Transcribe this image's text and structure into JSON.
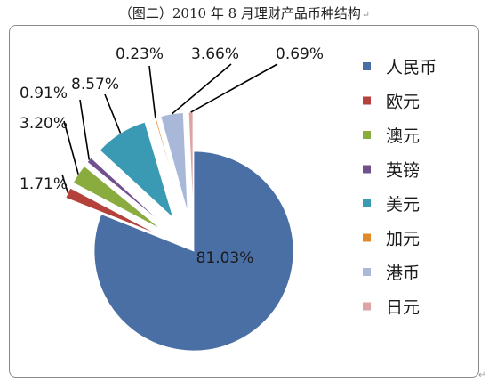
{
  "title": "（图二）2010 年 8 月理财产品币种结构",
  "title_mark": "↵",
  "corner_mark": "↵",
  "colors": {
    "人民币": "#4a6fa5",
    "欧元": "#b5413b",
    "澳元": "#8aab3e",
    "英镑": "#72508f",
    "美元": "#3b9ab3",
    "加元": "#e08a2c",
    "港币": "#a9b8d8",
    "日元": "#dca5a3"
  },
  "chart_data": {
    "type": "pie",
    "title": "（图二）2010 年 8 月理财产品币种结构",
    "exploded": true,
    "legend_position": "right",
    "slices": [
      {
        "name": "人民币",
        "value": 81.03,
        "label": "81.03%"
      },
      {
        "name": "欧元",
        "value": 1.71,
        "label": "1.71%"
      },
      {
        "name": "澳元",
        "value": 3.2,
        "label": "3.20%"
      },
      {
        "name": "英镑",
        "value": 0.91,
        "label": "0.91%"
      },
      {
        "name": "美元",
        "value": 8.57,
        "label": "8.57%"
      },
      {
        "name": "加元",
        "value": 0.23,
        "label": "0.23%"
      },
      {
        "name": "港币",
        "value": 3.66,
        "label": "3.66%"
      },
      {
        "name": "日元",
        "value": 0.69,
        "label": "0.69%"
      }
    ],
    "legend": [
      "人民币",
      "欧元",
      "澳元",
      "英镑",
      "美元",
      "加元",
      "港币",
      "日元"
    ]
  }
}
